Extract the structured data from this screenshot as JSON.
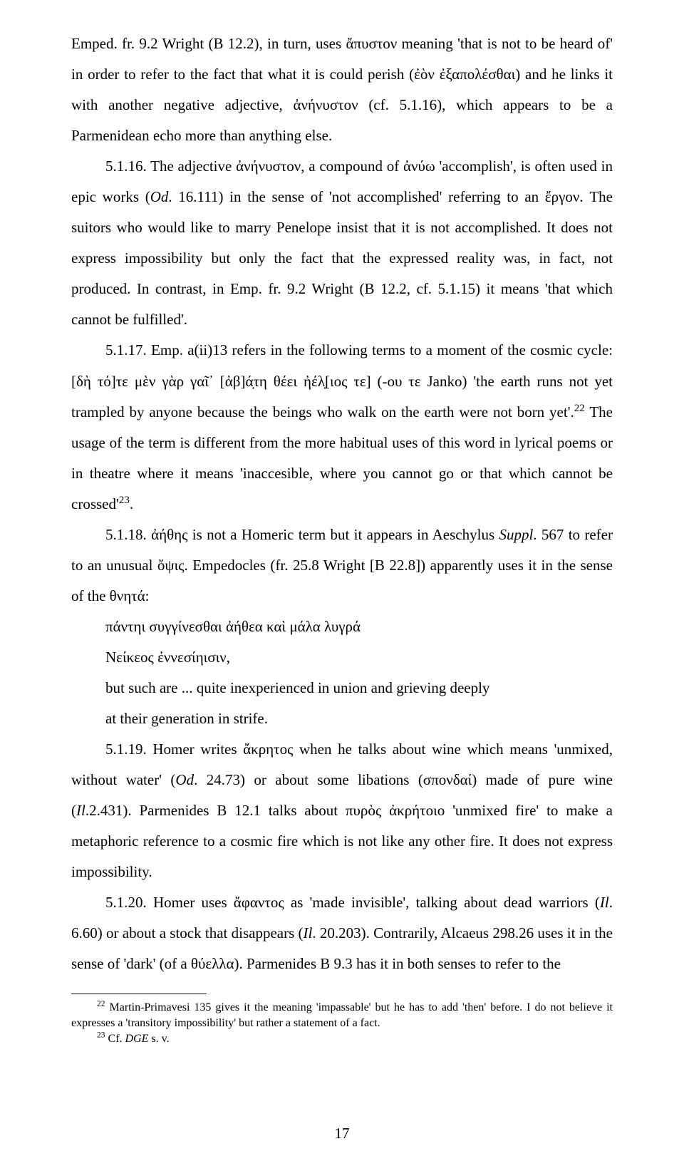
{
  "page_number": "17",
  "paragraphs": {
    "p1": "Emped. fr. 9.2 Wright (B 12.2), in turn, uses ἄπυστον meaning 'that is not to be heard of' in order to refer to the fact that what it is could perish (ἐὸν ἐξαπολέσθαι) and he links it with another negative adjective, ἀνήνυστον (cf. 5.1.16), which appears to be a Parmenidean echo more than anything else.",
    "p2_a": "5.1.16. The adjective ἀνήνυστον, a compound of ἀνύω 'accomplish', is often used in epic works (",
    "p2_od": "Od",
    "p2_b": ". 16.111) in the sense of 'not accomplished' referring to an ἔργον. The suitors who would like to marry Penelope insist that it is not accomplished. It does not express impossibility but only the fact that the expressed reality was, in fact, not produced. In contrast, in Emp. fr. 9.2 Wright (B 12.2, cf. 5.1.15) it means 'that which cannot be fulfilled'.",
    "p3_a": "5.1.17. Emp. a(ii)13 refers in the following terms to a moment of the cosmic cycle: [δὴ τό]τε μὲν γὰρ γαῖ᾽ [ἀβ]ά̣τη θέει ἠέλ̣[ιος τε]  (-ου τε Janko) 'the earth runs not yet trampled by anyone because the beings who walk on the earth were not born yet'.",
    "p3_fn22": "22",
    "p3_b": " The usage of the term is different from the more habitual uses of this word in lyrical poems or in theatre where it means 'inaccesible, where you cannot go or that which cannot be crossed'",
    "p3_fn23": "23",
    "p3_c": ".",
    "p4_a": "5.1.18. ἀήθης is not a Homeric term but it appears in Aeschylus ",
    "p4_suppl": "Suppl",
    "p4_b": ". 567 to refer to an unusual ὄψις. Empedocles (fr. 25.8 Wright [B 22.8]) apparently uses it in the sense of the θνητά:",
    "g1": "πάντηι συγγίνεσθαι ἀήθεα καὶ μάλα λυγρά",
    "g2": "Νείκεος ἐννεσίηισιν,",
    "g3": "but such are ... quite inexperienced in union and grieving deeply",
    "g4": "at their generation in strife.",
    "p5_a": "5.1.19. Homer writes ἄκρητος when he talks about wine which means 'unmixed, without water' (",
    "p5_od": "Od",
    "p5_b": ". 24.73) or about some libations (σπονδαί) made of pure wine (",
    "p5_il": "Il",
    "p5_c": ".2.431). Parmenides B 12.1 talks about πυρὸς ἀκρήτοιο 'unmixed fire' to make a metaphoric reference to a cosmic fire which is not like any other fire. It does not express impossibility.",
    "p6_a": "5.1.20. Homer uses ἄφαντος as 'made invisible', talking about dead warriors (",
    "p6_il1": "Il",
    "p6_b": ". 6.60) or about a stock that disappears (",
    "p6_il2": "Il",
    "p6_c": ". 20.203). Contrarily, Alcaeus 298.26 uses it in the sense of 'dark' (of a θύελλα). Parmenides B 9.3 has it in both senses to refer to the"
  },
  "footnotes": {
    "fn22_num": "22",
    "fn22_text": " Martin-Primavesi 135 gives it the meaning 'impassable' but he has to add 'then' before. I do not believe it expresses a 'transitory impossibility' but rather a statement of a fact.",
    "fn23_num": "23",
    "fn23_a": " Cf. ",
    "fn23_dge": "DGE",
    "fn23_b": " s. v."
  }
}
